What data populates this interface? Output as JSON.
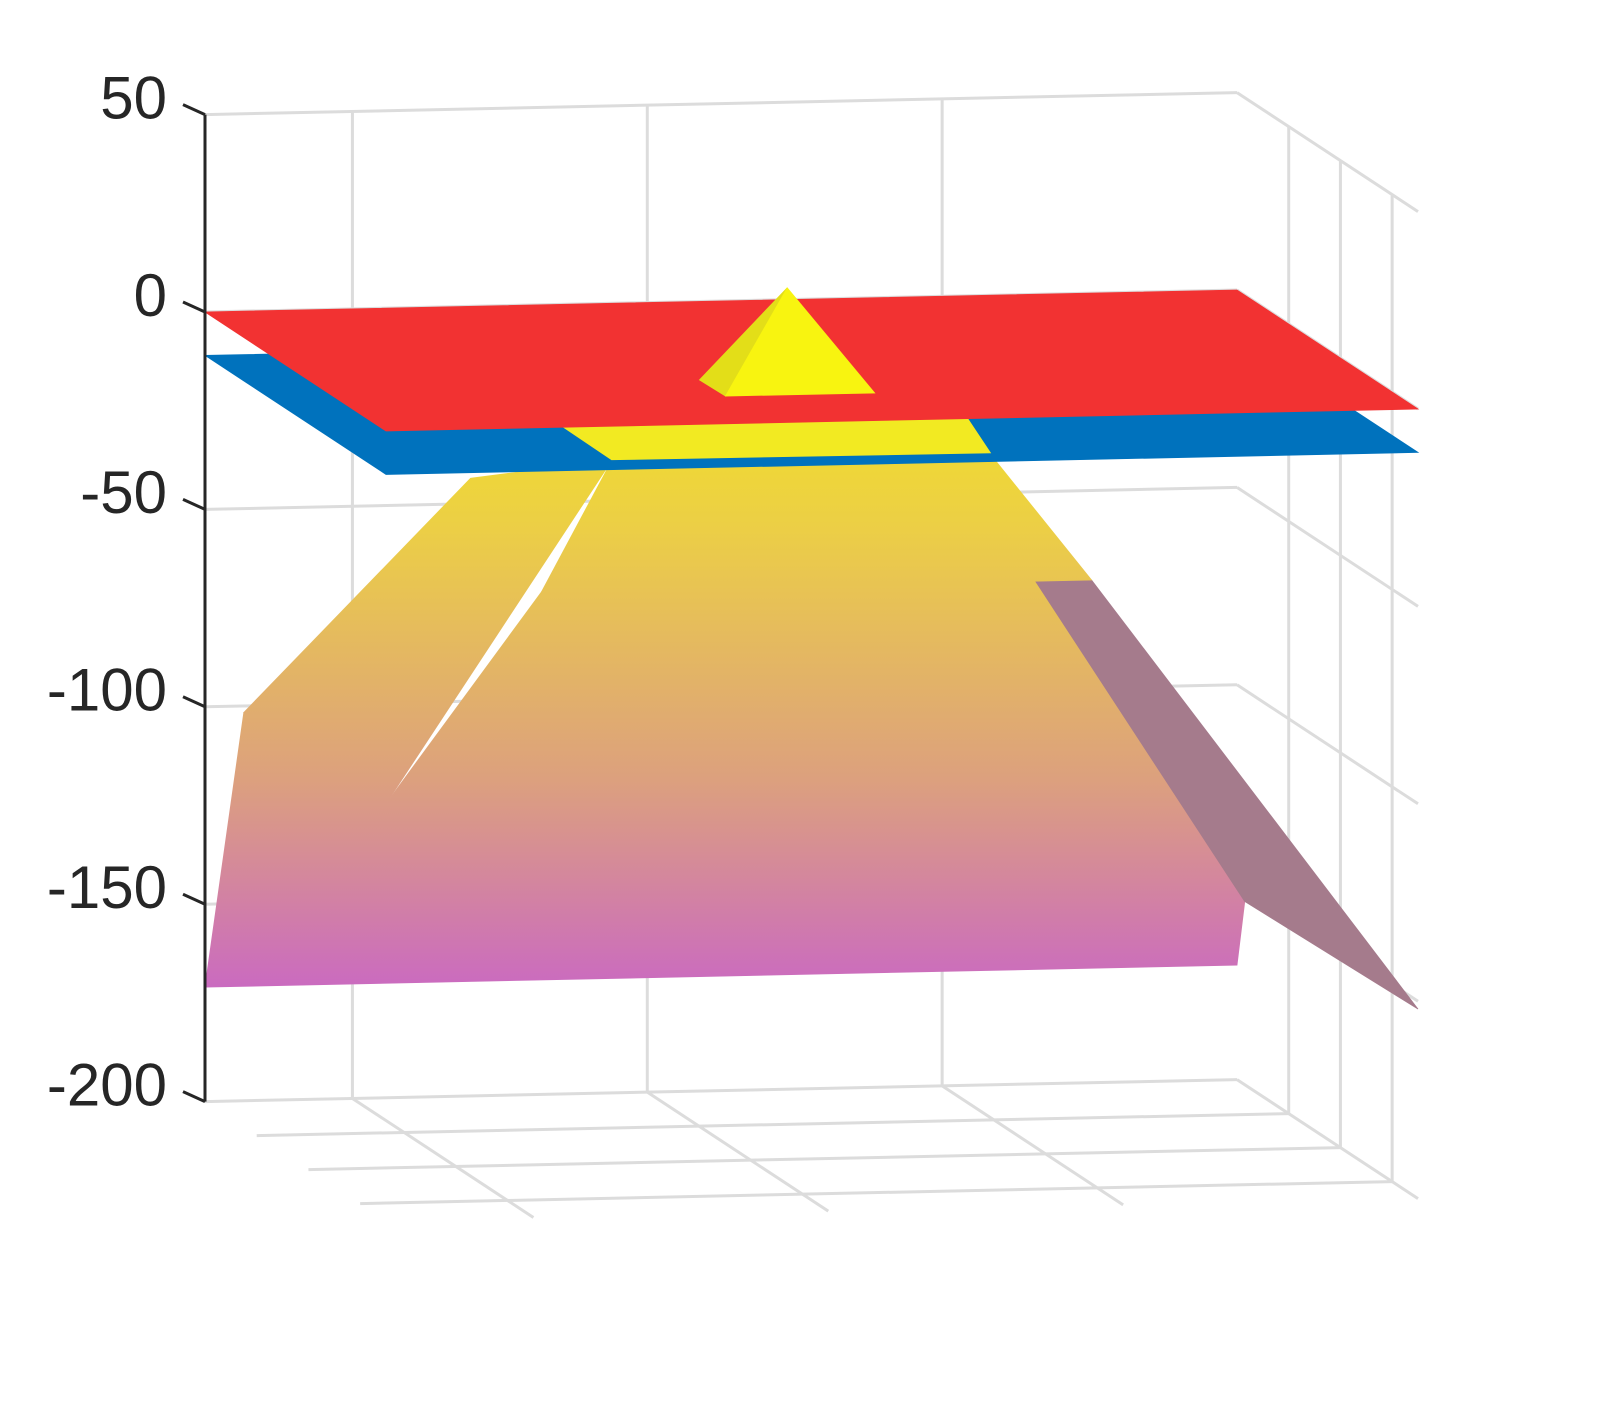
{
  "chart_data": {
    "type": "surface3d",
    "xlim": [
      0,
      7
    ],
    "xticks": [
      1,
      3,
      5
    ],
    "ylim": [
      0,
      7
    ],
    "yticks": [
      2,
      4,
      6
    ],
    "zlim": [
      -200,
      50
    ],
    "zticks": [
      50,
      0,
      -50,
      -100,
      -150,
      -200
    ],
    "grid": true,
    "colormap": [
      "#f6ee10",
      "#eccf45",
      "#dca07e",
      "#c65ecf"
    ],
    "surfaces": [
      {
        "color": "colormap",
        "vertices": [
          [
            0,
            0,
            -171
          ],
          [
            7,
            0,
            -171
          ],
          [
            7,
            0.3,
            -153.6
          ],
          [
            5.37,
            1.5,
            -66
          ],
          [
            2.02,
            1.5,
            -66
          ],
          [
            0,
            7,
            -94.4
          ],
          [
            0,
            1.5,
            -95
          ]
        ]
      },
      {
        "color": "#a57b8c",
        "vertices": [
          [
            5.37,
            1.5,
            -66
          ],
          [
            5.75,
            1.5,
            -66
          ],
          [
            7,
            7,
            -152
          ],
          [
            7,
            0.3,
            -153.6
          ]
        ]
      },
      {
        "color": "colormap",
        "vertices": [
          [
            0,
            1.5,
            -95
          ],
          [
            1.07,
            4.17,
            -25
          ],
          [
            2.18,
            3.31,
            -25
          ],
          [
            0,
            7,
            -94.4
          ]
        ]
      },
      {
        "color": "colormap",
        "vertices": [
          [
            2.02,
            1.5,
            -66
          ],
          [
            5.75,
            1.5,
            -66
          ],
          [
            4.73,
            3.37,
            -25
          ],
          [
            2.18,
            3.31,
            -25
          ]
        ]
      },
      {
        "color": "#0072bd",
        "vertices": [
          [
            0,
            0,
            -11
          ],
          [
            7,
            0,
            -11
          ],
          [
            7,
            7,
            -11
          ],
          [
            0,
            7,
            -11
          ]
        ]
      },
      {
        "color": "#f2ea22",
        "vertices": [
          [
            1.18,
            7,
            0.6
          ],
          [
            1.53,
            7,
            -8.5
          ],
          [
            4.1,
            7,
            -8.8
          ],
          [
            3.93,
            7,
            0.9
          ]
        ]
      },
      {
        "color": "#f23232",
        "vertices": [
          [
            0,
            0,
            0
          ],
          [
            7,
            0,
            0
          ],
          [
            7,
            7,
            0
          ],
          [
            0,
            7,
            0
          ]
        ]
      },
      {
        "color": "#e3de18",
        "vertices": [
          [
            3.16,
            4.5,
            23
          ],
          [
            2.57,
            4.47,
            0
          ],
          [
            2.58,
            5.42,
            0
          ]
        ]
      },
      {
        "color": "#f8f410",
        "vertices": [
          [
            3.16,
            4.5,
            23
          ],
          [
            2.58,
            5.42,
            0
          ],
          [
            3.59,
            5.43,
            0
          ]
        ]
      }
    ]
  }
}
